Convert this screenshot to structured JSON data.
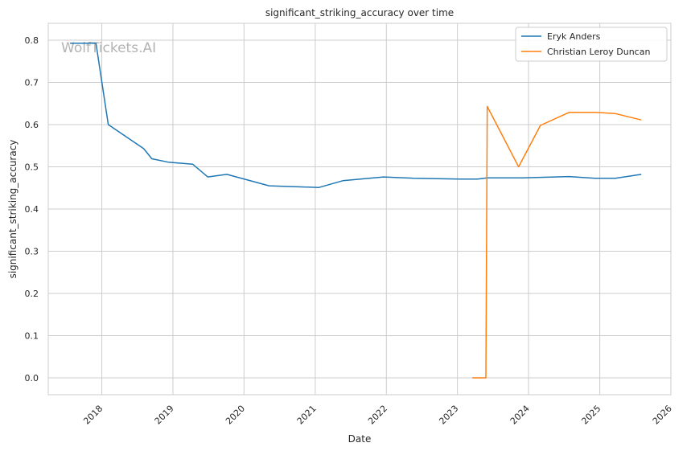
{
  "chart_data": {
    "type": "line",
    "title": "significant_striking_accuracy over time",
    "xlabel": "Date",
    "ylabel": "significant_striking_accuracy",
    "watermark": "WolfTickets.AI",
    "x_range": [
      "2017-04-01",
      "2026-01-01"
    ],
    "ylim": [
      -0.04,
      0.84
    ],
    "x_ticks": [
      "2018",
      "2019",
      "2020",
      "2021",
      "2022",
      "2023",
      "2024",
      "2025",
      "2026"
    ],
    "x_tick_dates": [
      "2018-01-01",
      "2019-01-01",
      "2020-01-01",
      "2021-01-01",
      "2022-01-01",
      "2023-01-01",
      "2024-01-01",
      "2025-01-01",
      "2026-01-01"
    ],
    "y_ticks": [
      0.0,
      0.1,
      0.2,
      0.3,
      0.4,
      0.5,
      0.6,
      0.7,
      0.8
    ],
    "y_tick_labels": [
      "0.0",
      "0.1",
      "0.2",
      "0.3",
      "0.4",
      "0.5",
      "0.6",
      "0.7",
      "0.8"
    ],
    "grid": true,
    "legend_position": "top-right",
    "series": [
      {
        "name": "Eryk Anders",
        "color": "#1f77b4",
        "points": [
          [
            "2017-07-22",
            0.793
          ],
          [
            "2017-12-02",
            0.793
          ],
          [
            "2018-02-03",
            0.6
          ],
          [
            "2018-08-04",
            0.543
          ],
          [
            "2018-09-15",
            0.519
          ],
          [
            "2018-12-08",
            0.511
          ],
          [
            "2019-04-13",
            0.506
          ],
          [
            "2019-06-29",
            0.476
          ],
          [
            "2019-10-05",
            0.482
          ],
          [
            "2020-05-09",
            0.455
          ],
          [
            "2021-01-20",
            0.451
          ],
          [
            "2021-05-22",
            0.467
          ],
          [
            "2021-12-18",
            0.476
          ],
          [
            "2022-05-21",
            0.473
          ],
          [
            "2023-01-14",
            0.471
          ],
          [
            "2023-04-15",
            0.471
          ],
          [
            "2023-06-03",
            0.474
          ],
          [
            "2023-12-02",
            0.474
          ],
          [
            "2024-07-27",
            0.477
          ],
          [
            "2024-12-07",
            0.473
          ],
          [
            "2025-03-22",
            0.473
          ],
          [
            "2025-08-02",
            0.482
          ]
        ]
      },
      {
        "name": "Christian Leroy Duncan",
        "color": "#ff7f0e",
        "points": [
          [
            "2023-03-18",
            0.0
          ],
          [
            "2023-05-27",
            0.0
          ],
          [
            "2023-06-03",
            0.643
          ],
          [
            "2023-11-11",
            0.5
          ],
          [
            "2024-03-02",
            0.598
          ],
          [
            "2024-07-27",
            0.629
          ],
          [
            "2024-12-07",
            0.629
          ],
          [
            "2025-03-22",
            0.626
          ],
          [
            "2025-08-02",
            0.611
          ]
        ]
      }
    ]
  }
}
